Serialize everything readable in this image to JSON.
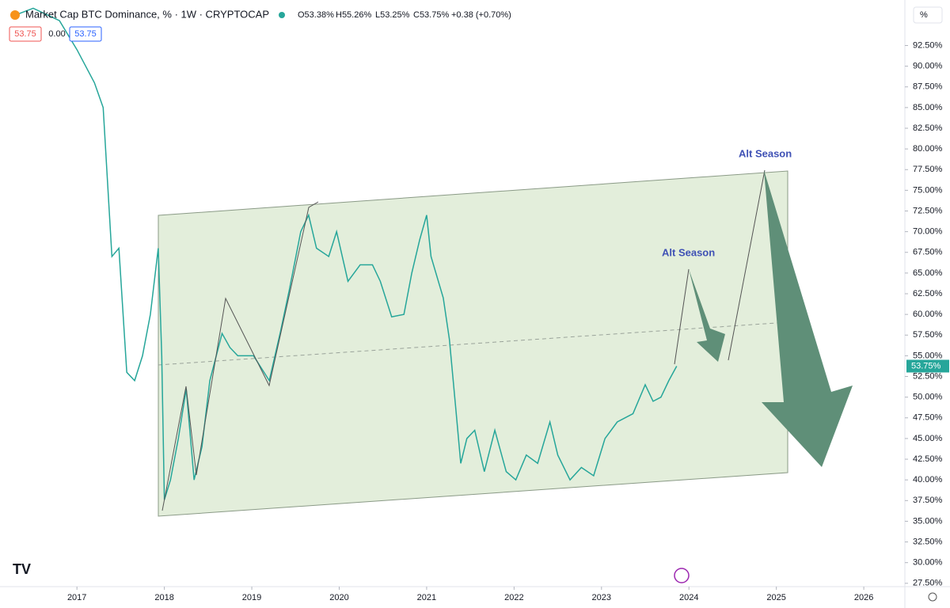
{
  "chart_data": {
    "type": "line",
    "title": "Market Cap BTC Dominance, % · 1W · CRYPTOCAP",
    "ohlc": {
      "open": "O53.38%",
      "high": "H55.26%",
      "low": "L53.25%",
      "close": "C53.75%",
      "change": "+0.38 (+0.70%)"
    },
    "badges": [
      "53.75",
      "0.00",
      "53.75"
    ],
    "axis_unit": "%",
    "last_price_label": "53.75%",
    "annotations": [
      "Alt Season",
      "Alt Season"
    ],
    "xlim": [
      2016.12,
      2026.47
    ],
    "ylim": [
      27.1,
      98
    ],
    "xticks": [
      2017,
      2018,
      2019,
      2020,
      2021,
      2022,
      2023,
      2024,
      2025,
      2026
    ],
    "yticks": [
      {
        "value": 27.5,
        "label": "27.50%"
      },
      {
        "value": 30,
        "label": "30.00%"
      },
      {
        "value": 32.5,
        "label": "32.50%"
      },
      {
        "value": 35,
        "label": "35.00%"
      },
      {
        "value": 37.5,
        "label": "37.50%"
      },
      {
        "value": 40,
        "label": "40.00%"
      },
      {
        "value": 42.5,
        "label": "42.50%"
      },
      {
        "value": 45,
        "label": "45.00%"
      },
      {
        "value": 47.5,
        "label": "47.50%"
      },
      {
        "value": 50,
        "label": "50.00%"
      },
      {
        "value": 52.5,
        "label": "52.50%"
      },
      {
        "value": 55,
        "label": "55.00%"
      },
      {
        "value": 57.5,
        "label": "57.50%"
      },
      {
        "value": 60,
        "label": "60.00%"
      },
      {
        "value": 62.5,
        "label": "62.50%"
      },
      {
        "value": 65,
        "label": "65.00%"
      },
      {
        "value": 67.5,
        "label": "67.50%"
      },
      {
        "value": 70,
        "label": "70.00%"
      },
      {
        "value": 72.5,
        "label": "72.50%"
      },
      {
        "value": 75,
        "label": "75.00%"
      },
      {
        "value": 77.5,
        "label": "77.50%"
      },
      {
        "value": 80,
        "label": "80.00%"
      },
      {
        "value": 82.5,
        "label": "82.50%"
      },
      {
        "value": 85,
        "label": "85.00%"
      },
      {
        "value": 87.5,
        "label": "87.50%"
      },
      {
        "value": 90,
        "label": "90.00%"
      },
      {
        "value": 92.5,
        "label": "92.50%"
      }
    ],
    "x": [
      2016.25,
      2016.5,
      2016.8,
      2017.0,
      2017.2,
      2017.3,
      2017.35,
      2017.4,
      2017.48,
      2017.57,
      2017.66,
      2017.75,
      2017.84,
      2017.93,
      2017.97,
      2018.0,
      2018.07,
      2018.16,
      2018.25,
      2018.34,
      2018.43,
      2018.52,
      2018.66,
      2018.75,
      2018.84,
      2019.02,
      2019.2,
      2019.33,
      2019.43,
      2019.56,
      2019.65,
      2019.74,
      2019.88,
      2019.97,
      2020.1,
      2020.24,
      2020.38,
      2020.47,
      2020.6,
      2020.74,
      2020.83,
      2020.92,
      2021.0,
      2021.05,
      2021.19,
      2021.26,
      2021.33,
      2021.39,
      2021.46,
      2021.55,
      2021.66,
      2021.78,
      2021.91,
      2022.02,
      2022.14,
      2022.27,
      2022.41,
      2022.5,
      2022.64,
      2022.77,
      2022.91,
      2023.04,
      2023.18,
      2023.36,
      2023.5,
      2023.59,
      2023.68,
      2023.77,
      2023.86
    ],
    "series": [
      {
        "name": "BTC Dominance",
        "color": "#26a69a",
        "values": [
          96,
          97,
          95.5,
          92,
          88,
          85,
          76,
          67,
          68,
          53,
          52,
          55,
          60,
          68,
          55,
          37.6,
          40,
          45,
          51,
          40,
          44,
          52,
          57.7,
          56,
          55,
          55,
          52,
          58,
          63,
          70,
          72,
          68,
          67,
          70,
          64,
          66,
          66,
          64,
          59.7,
          60,
          65,
          69,
          72,
          67,
          62,
          57,
          49,
          42,
          45,
          46,
          41,
          46,
          41,
          40,
          43,
          42,
          47,
          43,
          40,
          41.5,
          40.5,
          45,
          47,
          48,
          51.5,
          49.5,
          50,
          52,
          53.75
        ]
      }
    ]
  }
}
